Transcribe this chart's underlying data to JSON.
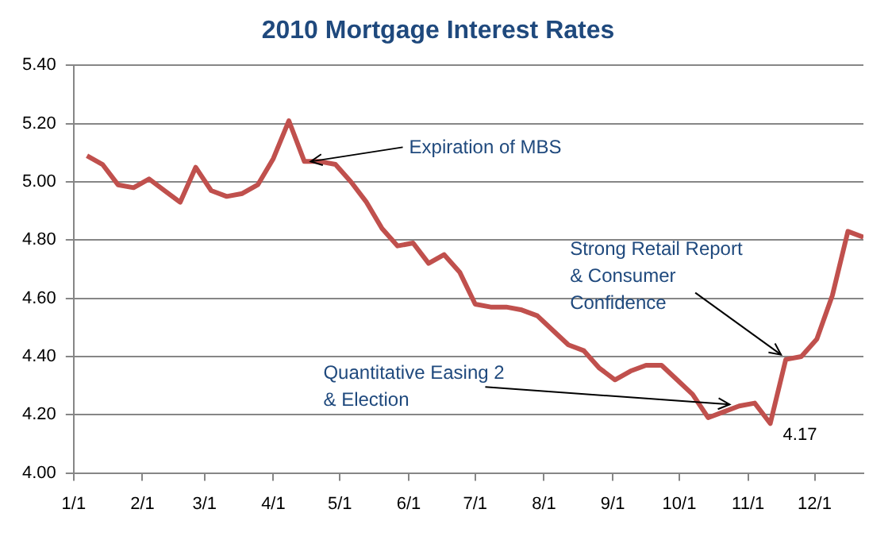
{
  "chart_data": {
    "type": "line",
    "title": "2010 Mortgage Interest Rates",
    "x": [
      "--01-07",
      "--01-14",
      "--01-21",
      "--01-28",
      "--02-04",
      "--02-11",
      "--02-18",
      "--02-25",
      "--03-04",
      "--03-11",
      "--03-18",
      "--03-25",
      "--04-01",
      "--04-08",
      "--04-15",
      "--04-22",
      "--04-29",
      "--05-06",
      "--05-13",
      "--05-20",
      "--05-27",
      "--06-03",
      "--06-10",
      "--06-17",
      "--06-24",
      "--07-01",
      "--07-08",
      "--07-15",
      "--07-22",
      "--07-29",
      "--08-05",
      "--08-12",
      "--08-19",
      "--08-26",
      "--09-02",
      "--09-09",
      "--09-16",
      "--09-23",
      "--09-30",
      "--10-07",
      "--10-14",
      "--10-21",
      "--10-28",
      "--11-04",
      "--11-11",
      "--11-18",
      "--11-25",
      "--12-02",
      "--12-09",
      "--12-16",
      "--12-23"
    ],
    "series": [
      {
        "color": "#c0504d",
        "values": [
          5.09,
          5.06,
          4.99,
          4.98,
          5.01,
          4.97,
          4.93,
          5.05,
          4.97,
          4.95,
          4.96,
          4.99,
          5.08,
          5.21,
          5.07,
          5.07,
          5.06,
          5.0,
          4.93,
          4.84,
          4.78,
          4.79,
          4.72,
          4.75,
          4.69,
          4.58,
          4.57,
          4.57,
          4.56,
          4.54,
          4.49,
          4.44,
          4.42,
          4.36,
          4.32,
          4.35,
          4.37,
          4.37,
          4.32,
          4.27,
          4.19,
          4.21,
          4.23,
          4.24,
          4.17,
          4.39,
          4.4,
          4.46,
          4.61,
          4.83,
          4.81
        ],
        "value_labels": [
          null,
          null,
          null,
          null,
          null,
          null,
          null,
          null,
          null,
          null,
          null,
          null,
          null,
          null,
          null,
          null,
          null,
          null,
          null,
          null,
          null,
          null,
          null,
          null,
          null,
          null,
          null,
          null,
          null,
          null,
          null,
          null,
          null,
          null,
          null,
          null,
          null,
          null,
          null,
          null,
          null,
          null,
          null,
          null,
          "4.17",
          null,
          null,
          null,
          null,
          null,
          null
        ]
      }
    ],
    "xlim": [
      "--01-01",
      "--12-23"
    ],
    "xticks": [
      {
        "value": "--01-01",
        "label": "1/1"
      },
      {
        "value": "--02-01",
        "label": "2/1"
      },
      {
        "value": "--03-01",
        "label": "3/1"
      },
      {
        "value": "--04-01",
        "label": "4/1"
      },
      {
        "value": "--05-01",
        "label": "5/1"
      },
      {
        "value": "--06-01",
        "label": "6/1"
      },
      {
        "value": "--07-01",
        "label": "7/1"
      },
      {
        "value": "--08-01",
        "label": "8/1"
      },
      {
        "value": "--09-01",
        "label": "9/1"
      },
      {
        "value": "--10-01",
        "label": "10/1"
      },
      {
        "value": "--11-01",
        "label": "11/1"
      },
      {
        "value": "--12-01",
        "label": "12/1"
      }
    ],
    "ylim": [
      4.0,
      5.4
    ],
    "yticks": [
      {
        "value": 4.0,
        "label": "4.00"
      },
      {
        "value": 4.2,
        "label": "4.20"
      },
      {
        "value": 4.4,
        "label": "4.40"
      },
      {
        "value": 4.6,
        "label": "4.60"
      },
      {
        "value": 4.8,
        "label": "4.80"
      },
      {
        "value": 5.0,
        "label": "5.00"
      },
      {
        "value": 5.2,
        "label": "5.20"
      },
      {
        "value": 5.4,
        "label": "5.40"
      }
    ],
    "annotations": [
      {
        "text": "Expiration of MBS",
        "x": "--04-15",
        "y": 5.07
      },
      {
        "text": "Quantitative Easing 2\n& Election",
        "x": "--10-28",
        "y": 4.23
      },
      {
        "text": "Strong Retail Report\n& Consumer\nConfidence",
        "x": "--11-18",
        "y": 4.39
      }
    ],
    "grid": "y",
    "legend": false,
    "marker": "none",
    "line_style": "solid"
  }
}
